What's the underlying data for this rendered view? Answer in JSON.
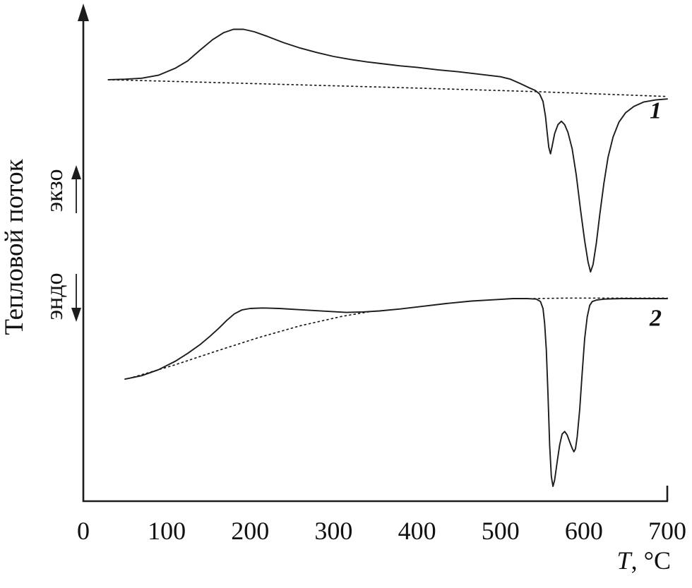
{
  "figure": {
    "background": "#ffffff",
    "description": "DSC thermogram with two heat-flow curves and dotted baselines"
  },
  "chart_data": {
    "type": "line",
    "title": "",
    "xlabel": {
      "italic": "T",
      "rest": ", °C"
    },
    "ylabel": "Тепловой поток",
    "y_direction_labels": [
      {
        "text": "экзо",
        "direction": "up"
      },
      {
        "text": "эндо",
        "direction": "down"
      }
    ],
    "xlim": [
      0,
      700
    ],
    "ylim": [
      0,
      100
    ],
    "x_ticks": [
      0,
      100,
      200,
      300,
      400,
      500,
      600,
      700
    ],
    "y_units": "arbitrary units (heat flow)",
    "grid": false,
    "legend_position": "none",
    "line_color": "#1c1c1c",
    "series": [
      {
        "id": "curve-1",
        "name": "DSC trace 1",
        "label": "1",
        "label_pos": [
          686,
          77.5
        ],
        "style": "solid",
        "points": [
          [
            30,
            85.3
          ],
          [
            50,
            85.4
          ],
          [
            70,
            85.6
          ],
          [
            90,
            86.2
          ],
          [
            110,
            87.6
          ],
          [
            125,
            89.1
          ],
          [
            140,
            91.3
          ],
          [
            155,
            93.4
          ],
          [
            168,
            94.8
          ],
          [
            180,
            95.5
          ],
          [
            192,
            95.5
          ],
          [
            205,
            95.0
          ],
          [
            220,
            94.1
          ],
          [
            240,
            92.8
          ],
          [
            260,
            91.7
          ],
          [
            280,
            90.8
          ],
          [
            300,
            90.0
          ],
          [
            320,
            89.4
          ],
          [
            340,
            88.9
          ],
          [
            360,
            88.5
          ],
          [
            380,
            88.1
          ],
          [
            400,
            87.8
          ],
          [
            425,
            87.3
          ],
          [
            450,
            86.9
          ],
          [
            475,
            86.4
          ],
          [
            500,
            85.9
          ],
          [
            512,
            85.4
          ],
          [
            524,
            84.5
          ],
          [
            534,
            83.7
          ],
          [
            542,
            83.1
          ],
          [
            547,
            82.4
          ],
          [
            551,
            80.9
          ],
          [
            554,
            77.9
          ],
          [
            556,
            74.6
          ],
          [
            558,
            71.6
          ],
          [
            560,
            70.3
          ],
          [
            562,
            71.9
          ],
          [
            565,
            74.4
          ],
          [
            569,
            76.2
          ],
          [
            573,
            76.9
          ],
          [
            577,
            76.2
          ],
          [
            581,
            74.6
          ],
          [
            586,
            71.3
          ],
          [
            591,
            65.9
          ],
          [
            596,
            59.0
          ],
          [
            601,
            52.7
          ],
          [
            605,
            48.4
          ],
          [
            608,
            46.4
          ],
          [
            611,
            47.9
          ],
          [
            615,
            52.3
          ],
          [
            619,
            57.9
          ],
          [
            624,
            64.3
          ],
          [
            629,
            69.6
          ],
          [
            635,
            73.7
          ],
          [
            642,
            76.7
          ],
          [
            650,
            78.6
          ],
          [
            660,
            79.9
          ],
          [
            672,
            80.8
          ],
          [
            686,
            81.2
          ],
          [
            700,
            81.4
          ]
        ]
      },
      {
        "id": "curve-1-baseline",
        "name": "Baseline of trace 1",
        "label": "",
        "style": "dotted",
        "points": [
          [
            30,
            85.3
          ],
          [
            120,
            84.9
          ],
          [
            250,
            84.3
          ],
          [
            380,
            83.7
          ],
          [
            480,
            83.2
          ],
          [
            540,
            82.9
          ],
          [
            620,
            82.4
          ],
          [
            700,
            81.9
          ]
        ]
      },
      {
        "id": "curve-2",
        "name": "DSC trace 2",
        "label": "2",
        "label_pos": [
          686,
          35.5
        ],
        "style": "solid",
        "points": [
          [
            50,
            24.7
          ],
          [
            70,
            25.4
          ],
          [
            90,
            26.6
          ],
          [
            110,
            28.3
          ],
          [
            125,
            29.9
          ],
          [
            140,
            31.7
          ],
          [
            152,
            33.4
          ],
          [
            163,
            35.1
          ],
          [
            172,
            36.6
          ],
          [
            181,
            37.9
          ],
          [
            190,
            38.7
          ],
          [
            200,
            39.0
          ],
          [
            215,
            39.1
          ],
          [
            235,
            39.0
          ],
          [
            255,
            38.8
          ],
          [
            275,
            38.6
          ],
          [
            295,
            38.4
          ],
          [
            315,
            38.2
          ],
          [
            335,
            38.3
          ],
          [
            355,
            38.5
          ],
          [
            380,
            38.9
          ],
          [
            405,
            39.4
          ],
          [
            435,
            40.0
          ],
          [
            465,
            40.5
          ],
          [
            495,
            40.8
          ],
          [
            515,
            41.0
          ],
          [
            532,
            41.0
          ],
          [
            543,
            40.9
          ],
          [
            548,
            40.4
          ],
          [
            551,
            39.0
          ],
          [
            553,
            36.0
          ],
          [
            555,
            30.6
          ],
          [
            557,
            21.4
          ],
          [
            559,
            11.4
          ],
          [
            561,
            5.0
          ],
          [
            563,
            3.0
          ],
          [
            565,
            4.3
          ],
          [
            568,
            8.0
          ],
          [
            571,
            11.4
          ],
          [
            574,
            13.6
          ],
          [
            577,
            14.1
          ],
          [
            580,
            13.4
          ],
          [
            583,
            12.0
          ],
          [
            586,
            10.7
          ],
          [
            588,
            10.0
          ],
          [
            590,
            10.6
          ],
          [
            592,
            13.0
          ],
          [
            595,
            18.6
          ],
          [
            598,
            26.0
          ],
          [
            601,
            32.9
          ],
          [
            604,
            37.3
          ],
          [
            607,
            39.6
          ],
          [
            610,
            40.4
          ],
          [
            615,
            40.7
          ],
          [
            625,
            40.9
          ],
          [
            645,
            41.0
          ],
          [
            670,
            41.0
          ],
          [
            700,
            41.0
          ]
        ]
      },
      {
        "id": "curve-2-baseline",
        "name": "Baseline of trace 2 (rising segment)",
        "label": "",
        "style": "dotted",
        "points": [
          [
            60,
            25.1
          ],
          [
            110,
            27.6
          ],
          [
            160,
            30.4
          ],
          [
            210,
            33.1
          ],
          [
            260,
            35.5
          ],
          [
            310,
            37.4
          ],
          [
            345,
            38.4
          ]
        ]
      },
      {
        "id": "curve-2-baseline-end",
        "name": "Baseline of trace 2 (end segment across peaks)",
        "label": "",
        "style": "dotted",
        "points": [
          [
            540,
            41.0
          ],
          [
            580,
            41.1
          ],
          [
            620,
            41.1
          ],
          [
            660,
            41.1
          ],
          [
            700,
            41.1
          ]
        ]
      }
    ]
  }
}
